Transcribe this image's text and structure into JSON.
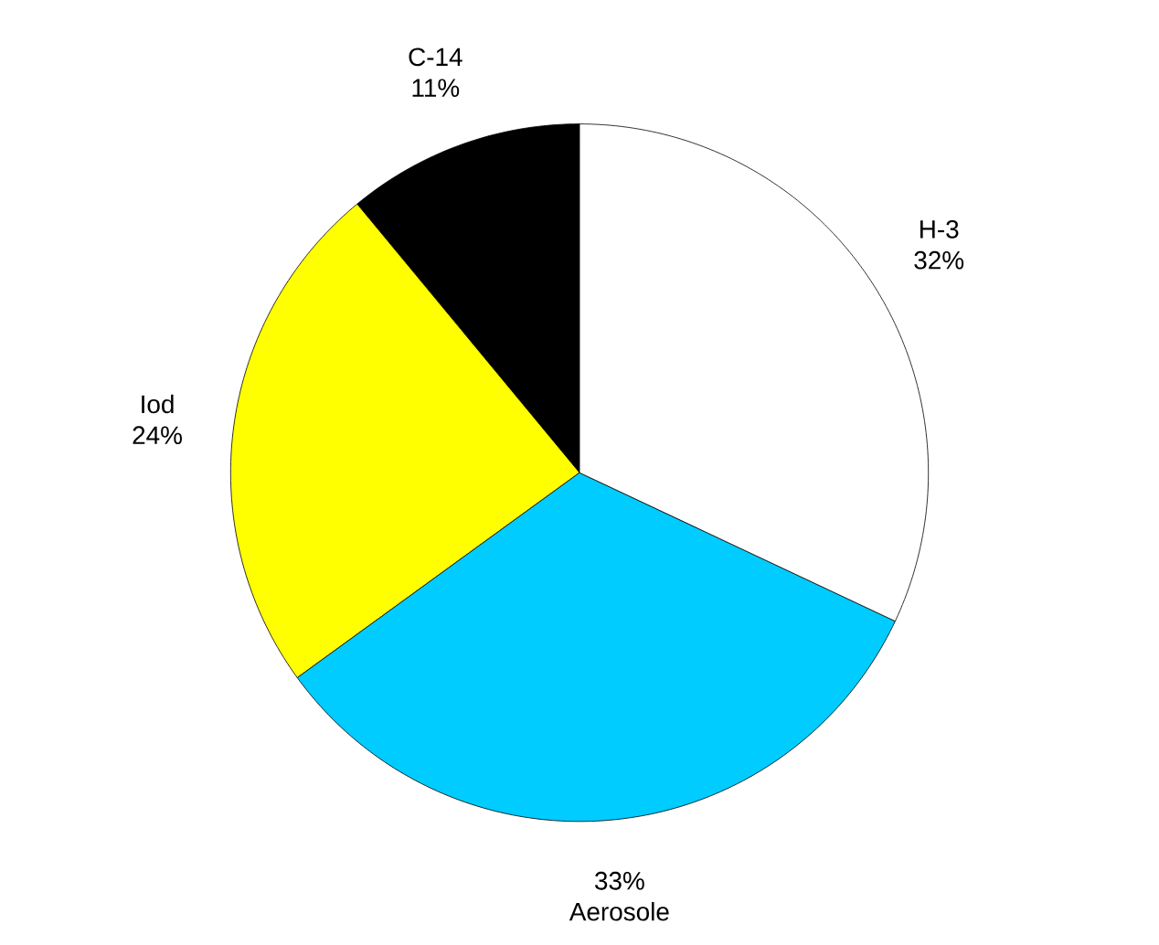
{
  "chart_data": {
    "type": "pie",
    "categories": [
      "C-14",
      "Iod",
      "Aerosole",
      "H-3"
    ],
    "values": [
      11,
      24,
      33,
      32
    ],
    "value_labels": [
      "11%",
      "24%",
      "33%",
      "32%"
    ],
    "colors": [
      "#000000",
      "#ffff00",
      "#00ccff",
      "#ffffff"
    ]
  }
}
